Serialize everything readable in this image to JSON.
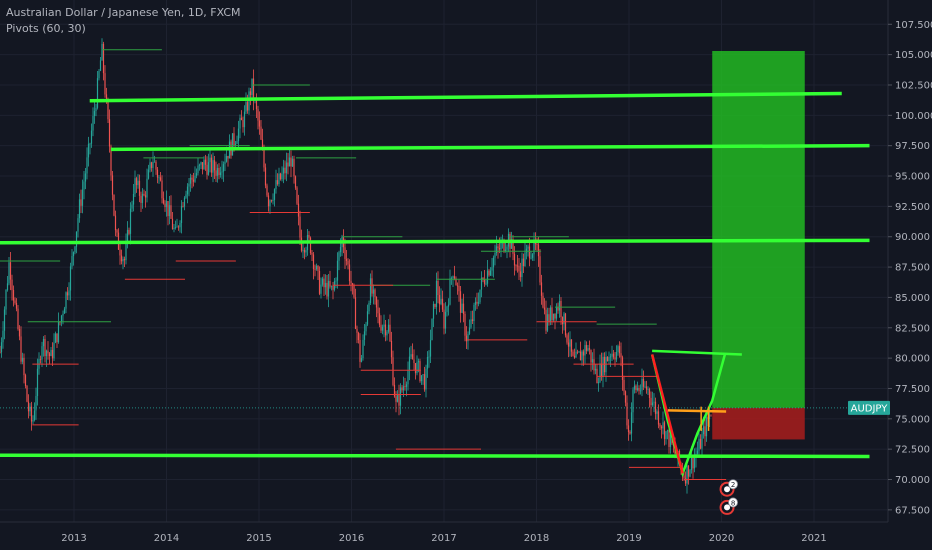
{
  "header": {
    "title": "Australian Dollar / Japanese Yen, 1D, FXCM",
    "indicator": "Pivots (60, 30)"
  },
  "colors": {
    "background": "#131722",
    "grid": "#1e2230",
    "up": "#26a69a",
    "down": "#ef5350",
    "green_line": "#33ff33",
    "pivot_high": "#2ea043",
    "pivot_low": "#e53935",
    "profit_zone": "#22c722",
    "loss_zone": "#a11d1d",
    "orange": "#ff9f1a",
    "tag": "#26a69a",
    "axis_text": "#b2b5be"
  },
  "chart_data": {
    "type": "candlestick",
    "symbol_tag": "AUDJPY",
    "last_price": 75.9,
    "ylim": [
      66.5,
      109.5
    ],
    "xlim": [
      2012.2,
      2021.8
    ],
    "y_ticks": [
      "67.500",
      "70.000",
      "72.500",
      "75.000",
      "77.500",
      "80.000",
      "82.500",
      "85.000",
      "87.500",
      "90.000",
      "92.500",
      "95.000",
      "97.500",
      "100.000",
      "102.500",
      "105.000",
      "107.500"
    ],
    "x_ticks": [
      "2013",
      "2014",
      "2015",
      "2016",
      "2017",
      "2018",
      "2019",
      "2020",
      "2021"
    ],
    "price_path": [
      [
        2012.2,
        80.5
      ],
      [
        2012.3,
        88.0
      ],
      [
        2012.4,
        82.0
      ],
      [
        2012.5,
        76.0
      ],
      [
        2012.55,
        74.5
      ],
      [
        2012.65,
        81.5
      ],
      [
        2012.75,
        80.0
      ],
      [
        2012.85,
        83.0
      ],
      [
        2012.95,
        86.5
      ],
      [
        2013.05,
        92.0
      ],
      [
        2013.15,
        96.5
      ],
      [
        2013.25,
        102.0
      ],
      [
        2013.3,
        105.4
      ],
      [
        2013.38,
        98.0
      ],
      [
        2013.45,
        90.0
      ],
      [
        2013.55,
        88.0
      ],
      [
        2013.65,
        94.5
      ],
      [
        2013.75,
        93.0
      ],
      [
        2013.85,
        96.5
      ],
      [
        2013.95,
        94.0
      ],
      [
        2014.1,
        90.0
      ],
      [
        2014.2,
        94.0
      ],
      [
        2014.4,
        96.0
      ],
      [
        2014.55,
        95.5
      ],
      [
        2014.7,
        97.5
      ],
      [
        2014.85,
        100.0
      ],
      [
        2014.92,
        102.5
      ],
      [
        2015.0,
        99.0
      ],
      [
        2015.1,
        93.0
      ],
      [
        2015.25,
        95.0
      ],
      [
        2015.35,
        96.5
      ],
      [
        2015.45,
        89.5
      ],
      [
        2015.55,
        89.5
      ],
      [
        2015.65,
        86.0
      ],
      [
        2015.8,
        85.5
      ],
      [
        2015.9,
        90.0
      ],
      [
        2016.0,
        86.0
      ],
      [
        2016.1,
        79.5
      ],
      [
        2016.2,
        86.0
      ],
      [
        2016.3,
        83.0
      ],
      [
        2016.4,
        82.5
      ],
      [
        2016.48,
        76.0
      ],
      [
        2016.55,
        77.5
      ],
      [
        2016.65,
        80.0
      ],
      [
        2016.8,
        78.0
      ],
      [
        2016.92,
        86.0
      ],
      [
        2017.0,
        83.0
      ],
      [
        2017.1,
        87.5
      ],
      [
        2017.25,
        81.5
      ],
      [
        2017.4,
        86.0
      ],
      [
        2017.55,
        88.5
      ],
      [
        2017.7,
        90.0
      ],
      [
        2017.8,
        87.0
      ],
      [
        2017.92,
        89.0
      ],
      [
        2018.0,
        89.0
      ],
      [
        2018.1,
        83.0
      ],
      [
        2018.25,
        84.5
      ],
      [
        2018.4,
        79.5
      ],
      [
        2018.55,
        81.0
      ],
      [
        2018.65,
        78.5
      ],
      [
        2018.8,
        80.5
      ],
      [
        2018.9,
        80.5
      ],
      [
        2019.0,
        73.5
      ],
      [
        2019.05,
        77.5
      ],
      [
        2019.2,
        77.5
      ],
      [
        2019.3,
        75.5
      ],
      [
        2019.45,
        73.0
      ],
      [
        2019.6,
        70.3
      ],
      [
        2019.75,
        72.5
      ],
      [
        2019.9,
        76.0
      ]
    ],
    "pivot_highs": [
      [
        2012.2,
        2012.85,
        88.0
      ],
      [
        2013.3,
        2013.95,
        105.4
      ],
      [
        2013.75,
        2014.4,
        96.5
      ],
      [
        2014.25,
        2014.9,
        97.5
      ],
      [
        2014.92,
        2015.55,
        102.5
      ],
      [
        2015.4,
        2016.05,
        96.5
      ],
      [
        2015.9,
        2016.55,
        90.0
      ],
      [
        2016.2,
        2016.85,
        86.0
      ],
      [
        2016.92,
        2017.55,
        86.5
      ],
      [
        2017.7,
        2018.35,
        90.0
      ],
      [
        2017.4,
        2018.05,
        88.8
      ],
      [
        2018.65,
        2019.3,
        82.8
      ],
      [
        2018.2,
        2018.85,
        84.2
      ],
      [
        2012.5,
        2013.4,
        83.0
      ]
    ],
    "pivot_lows": [
      [
        2012.55,
        2013.05,
        74.5
      ],
      [
        2012.55,
        2013.05,
        79.5
      ],
      [
        2013.55,
        2014.2,
        86.5
      ],
      [
        2014.1,
        2014.75,
        88.0
      ],
      [
        2014.9,
        2015.55,
        92.0
      ],
      [
        2015.55,
        2016.2,
        89.5
      ],
      [
        2015.8,
        2016.45,
        86.0
      ],
      [
        2016.1,
        2016.75,
        79.0
      ],
      [
        2016.1,
        2016.75,
        77.0
      ],
      [
        2016.48,
        2017.4,
        72.5
      ],
      [
        2017.25,
        2017.9,
        81.5
      ],
      [
        2018.0,
        2018.65,
        83.0
      ],
      [
        2018.4,
        2019.05,
        79.5
      ],
      [
        2018.65,
        2019.3,
        78.5
      ],
      [
        2019.0,
        2019.55,
        71.0
      ],
      [
        2019.6,
        2020.05,
        70.0
      ]
    ],
    "trend_lines": [
      [
        2013.17,
        101.2,
        2021.3,
        101.8
      ],
      [
        2013.4,
        97.2,
        2021.6,
        97.5
      ],
      [
        2012.2,
        89.5,
        2021.6,
        89.7
      ],
      [
        2012.2,
        72.0,
        2021.6,
        71.9
      ]
    ],
    "projection": {
      "path": [
        [
          2019.25,
          80.3
        ],
        [
          2019.42,
          74.8
        ],
        [
          2019.58,
          70.5
        ],
        [
          2019.74,
          73.8
        ],
        [
          2019.9,
          76.5
        ],
        [
          2020.04,
          80.4
        ]
      ],
      "red_leg": [
        [
          2019.25,
          80.3
        ],
        [
          2019.58,
          70.5
        ]
      ],
      "top_line": [
        2019.25,
        80.6,
        2020.22,
        80.3
      ],
      "orange_line": [
        2019.42,
        75.7,
        2020.05,
        75.6
      ],
      "box_lines": [
        [
          2019.78,
          74.0,
          2019.78,
          76.0
        ],
        [
          2019.86,
          74.0,
          2019.86,
          76.0
        ]
      ]
    },
    "position": {
      "x0": 2019.9,
      "x1": 2020.9,
      "entry": 75.9,
      "stop": 73.3,
      "target": 105.3
    },
    "event_markers": [
      {
        "x": 2020.06,
        "y": 69.2,
        "count": "2"
      },
      {
        "x": 2020.06,
        "y": 67.7,
        "count": "8"
      }
    ]
  }
}
